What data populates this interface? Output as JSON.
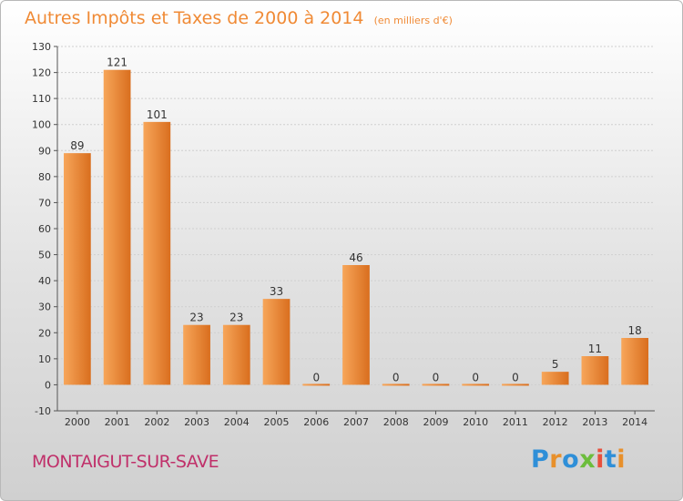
{
  "header": {
    "title": "Autres Impôts et Taxes de 2000 à 2014",
    "subtitle": "(en milliers d'€)"
  },
  "footer": {
    "commune": "MONTAIGUT-SUR-SAVE",
    "logo_letters": [
      "P",
      "r",
      "o",
      "x",
      "i",
      "t",
      "i"
    ],
    "logo_colors": [
      "#2f8fd8",
      "#e8902b",
      "#2f8fd8",
      "#6cbd3c",
      "#e84f3c",
      "#2f8fd8",
      "#e8902b"
    ]
  },
  "colors": {
    "bar_light": "#f7a65a",
    "bar_dark": "#d96e1e",
    "title": "#f08a35",
    "commune": "#c0306a",
    "axis": "#555555",
    "grid": "#cfcfcf"
  },
  "chart_data": {
    "type": "bar",
    "title": "Autres Impôts et Taxes de 2000 à 2014",
    "subtitle": "(en milliers d'€)",
    "categories": [
      "2000",
      "2001",
      "2002",
      "2003",
      "2004",
      "2005",
      "2006",
      "2007",
      "2008",
      "2009",
      "2010",
      "2011",
      "2012",
      "2013",
      "2014"
    ],
    "values": [
      89,
      121,
      101,
      23,
      23,
      33,
      0,
      46,
      0,
      0,
      0,
      0,
      5,
      11,
      18
    ],
    "ylim": [
      -10,
      130
    ],
    "yticks": [
      -10,
      0,
      10,
      20,
      30,
      40,
      50,
      60,
      70,
      80,
      90,
      100,
      110,
      120,
      130
    ],
    "grid": true,
    "data_labels": true
  }
}
